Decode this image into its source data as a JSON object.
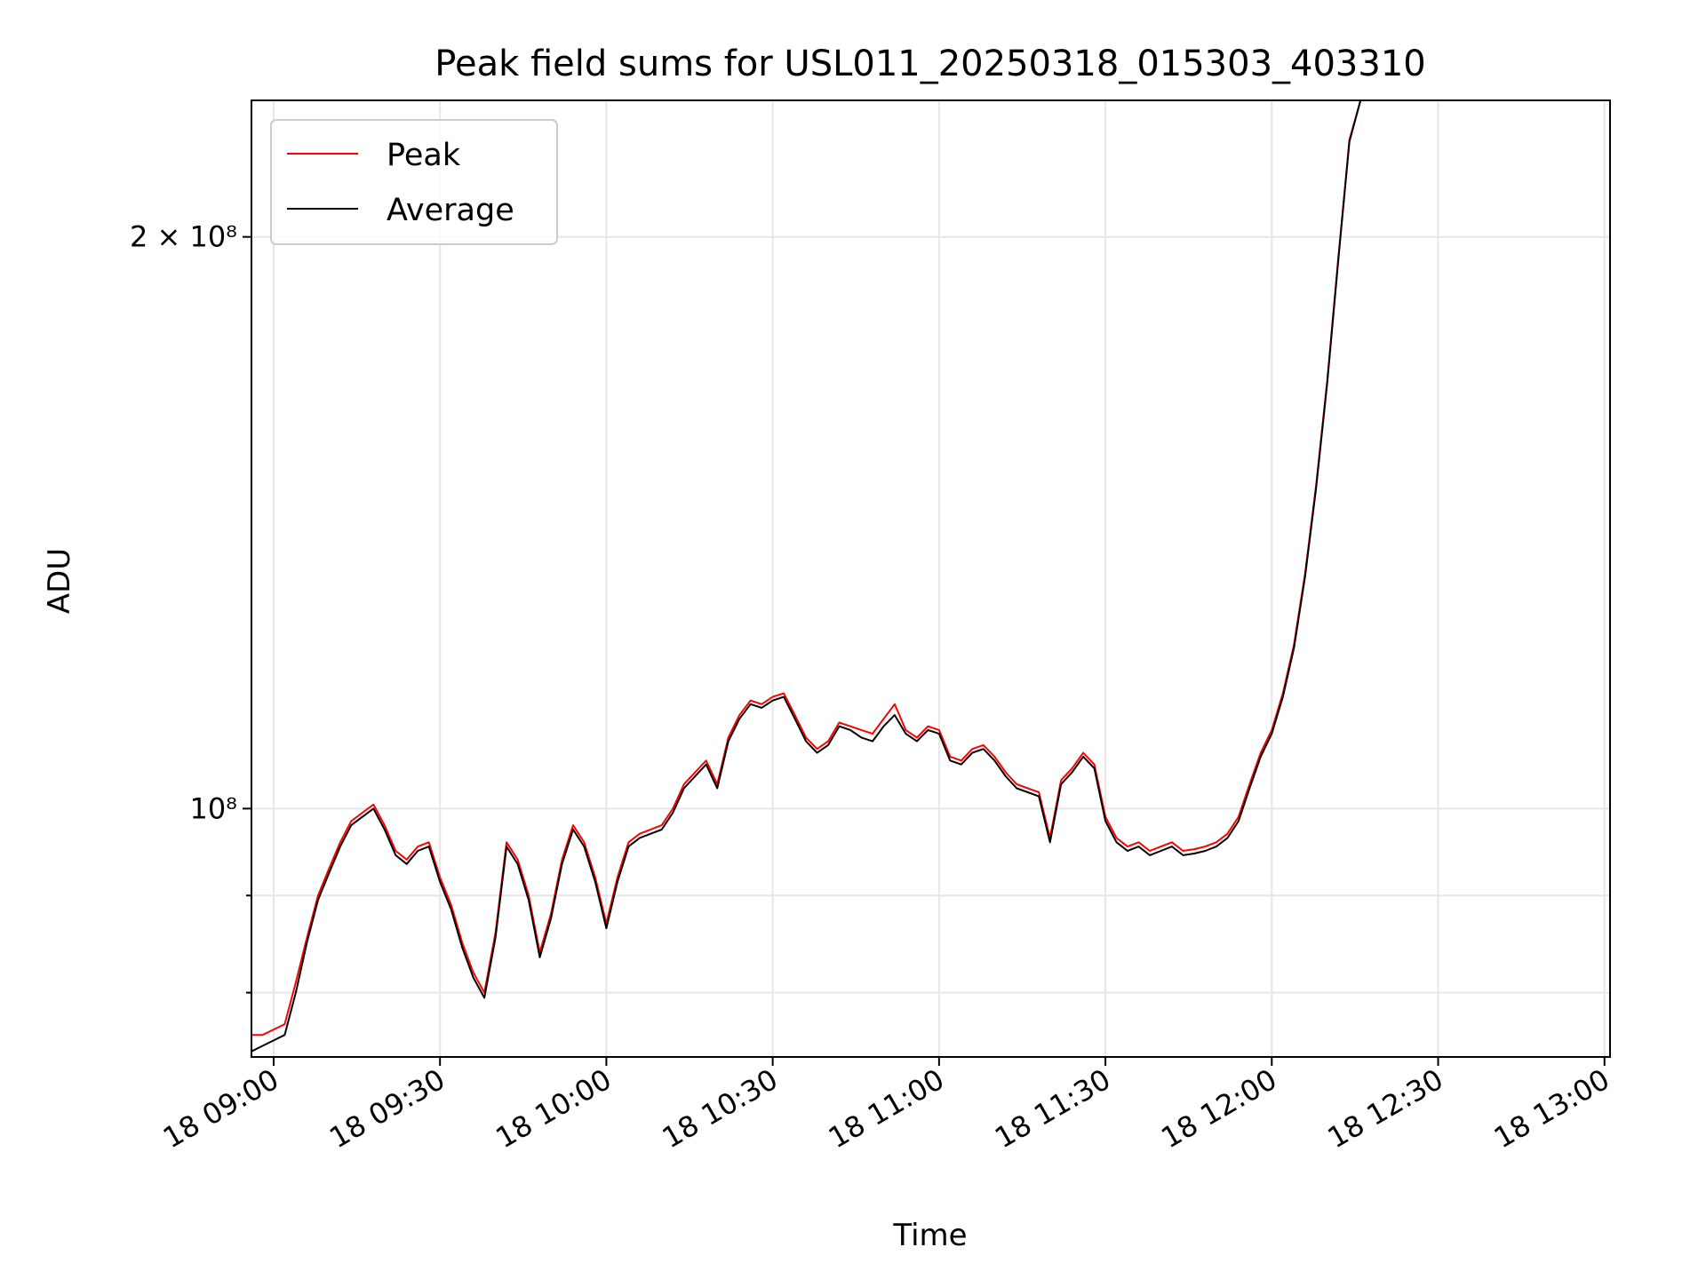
{
  "chart_data": {
    "type": "line",
    "title": "Peak field sums for USL011_20250318_015303_403310",
    "xlabel": "Time",
    "ylabel": "ADU",
    "yscale": "log",
    "xlim": [
      "2025-03-18 08:56",
      "2025-03-18 13:01"
    ],
    "ylim": [
      74000000,
      236000000
    ],
    "x_ticks": [
      "18 09:00",
      "18 09:30",
      "18 10:00",
      "18 10:30",
      "18 11:00",
      "18 11:30",
      "18 12:00",
      "18 12:30",
      "18 13:00"
    ],
    "y_ticks": [
      "10⁸",
      "2 × 10⁸"
    ],
    "grid": true,
    "legend": {
      "position": "top-left",
      "entries": [
        "Peak",
        "Average"
      ]
    },
    "colors": {
      "Peak": "#ff0000",
      "Average": "#000000"
    },
    "x": [
      "08:56",
      "08:58",
      "09:00",
      "09:02",
      "09:04",
      "09:06",
      "09:08",
      "09:10",
      "09:12",
      "09:14",
      "09:16",
      "09:18",
      "09:20",
      "09:22",
      "09:24",
      "09:26",
      "09:28",
      "09:30",
      "09:32",
      "09:34",
      "09:36",
      "09:38",
      "09:40",
      "09:42",
      "09:44",
      "09:46",
      "09:48",
      "09:50",
      "09:52",
      "09:54",
      "09:56",
      "09:58",
      "10:00",
      "10:02",
      "10:04",
      "10:06",
      "10:08",
      "10:10",
      "10:12",
      "10:14",
      "10:16",
      "10:18",
      "10:20",
      "10:22",
      "10:24",
      "10:26",
      "10:28",
      "10:30",
      "10:32",
      "10:34",
      "10:36",
      "10:38",
      "10:40",
      "10:42",
      "10:44",
      "10:46",
      "10:48",
      "10:50",
      "10:52",
      "10:54",
      "10:56",
      "10:58",
      "11:00",
      "11:02",
      "11:04",
      "11:06",
      "11:08",
      "11:10",
      "11:12",
      "11:14",
      "11:16",
      "11:18",
      "11:20",
      "11:22",
      "11:24",
      "11:26",
      "11:28",
      "11:30",
      "11:32",
      "11:34",
      "11:36",
      "11:38",
      "11:40",
      "11:42",
      "11:44",
      "11:46",
      "11:48",
      "11:50",
      "11:52",
      "11:54",
      "11:56",
      "11:58",
      "12:00",
      "12:02",
      "12:04",
      "12:06",
      "12:08",
      "12:10",
      "12:12",
      "12:14",
      "12:16",
      "12:18",
      "12:20",
      "12:22",
      "12:24",
      "12:26",
      "12:28",
      "12:30",
      "12:32",
      "12:34",
      "12:36",
      "12:38",
      "12:40",
      "12:42",
      "12:44",
      "12:46",
      "12:48",
      "12:50",
      "12:52",
      "12:54"
    ],
    "series": [
      {
        "name": "Peak",
        "values": [
          76000000,
          76000000,
          76500000,
          77000000,
          81000000,
          85500000,
          90000000,
          93000000,
          96000000,
          98500000,
          99500000,
          100500000,
          98000000,
          95000000,
          94000000,
          95500000,
          96000000,
          92000000,
          89000000,
          85000000,
          82000000,
          80000000,
          86000000,
          96000000,
          94000000,
          90000000,
          84000000,
          88000000,
          94000000,
          98000000,
          96000000,
          92000000,
          87000000,
          92000000,
          96000000,
          97000000,
          97500000,
          98000000,
          100000000,
          103000000,
          104500000,
          106000000,
          103000000,
          109000000,
          112000000,
          114000000,
          113500000,
          114500000,
          115000000,
          112000000,
          109000000,
          107500000,
          108500000,
          111000000,
          110500000,
          110000000,
          109500000,
          111500000,
          113500000,
          110000000,
          109000000,
          110500000,
          110000000,
          106500000,
          106000000,
          107500000,
          108000000,
          106500000,
          104500000,
          103000000,
          102500000,
          102000000,
          96500000,
          103500000,
          105000000,
          107000000,
          105500000,
          99000000,
          96500000,
          95500000,
          96000000,
          95000000,
          95500000,
          96000000,
          95000000,
          95200000,
          95500000,
          96000000,
          97000000,
          99000000,
          103000000,
          107000000,
          110000000,
          115000000,
          122000000,
          133000000,
          148000000,
          168000000,
          195000000,
          225000000,
          236000000,
          236000000,
          236000000,
          236000000,
          236000000,
          236000000,
          236000000,
          236000000,
          236000000,
          236000000,
          236000000,
          236000000,
          236000000,
          236000000,
          236000000,
          236000000,
          236000000,
          236000000,
          236000000,
          236000000
        ]
      },
      {
        "name": "Average",
        "values": [
          74500000,
          75000000,
          75500000,
          76000000,
          80000000,
          85000000,
          89500000,
          92500000,
          95500000,
          98000000,
          99000000,
          100000000,
          97500000,
          94500000,
          93500000,
          95000000,
          95500000,
          91500000,
          88500000,
          84500000,
          81500000,
          79500000,
          85500000,
          95500000,
          93500000,
          89500000,
          83500000,
          87500000,
          93500000,
          97500000,
          95500000,
          91500000,
          86500000,
          91500000,
          95500000,
          96500000,
          97000000,
          97500000,
          99500000,
          102500000,
          104000000,
          105500000,
          102500000,
          108500000,
          111500000,
          113500000,
          113000000,
          114000000,
          114500000,
          111500000,
          108500000,
          107000000,
          108000000,
          110500000,
          110000000,
          109000000,
          108500000,
          110500000,
          112000000,
          109500000,
          108500000,
          110000000,
          109500000,
          106000000,
          105500000,
          107000000,
          107500000,
          106000000,
          104000000,
          102500000,
          102000000,
          101500000,
          96000000,
          103000000,
          104500000,
          106500000,
          105000000,
          98500000,
          96000000,
          95000000,
          95500000,
          94500000,
          95000000,
          95500000,
          94500000,
          94700000,
          95000000,
          95500000,
          96500000,
          98500000,
          102500000,
          106500000,
          109500000,
          114500000,
          121500000,
          132500000,
          147500000,
          167500000,
          194500000,
          224500000,
          236000000,
          236000000,
          236000000,
          236000000,
          236000000,
          236000000,
          236000000,
          236000000,
          236000000,
          236000000,
          236000000,
          236000000,
          236000000,
          236000000,
          236000000,
          236000000,
          236000000,
          236000000,
          236000000,
          236000000
        ]
      }
    ]
  }
}
